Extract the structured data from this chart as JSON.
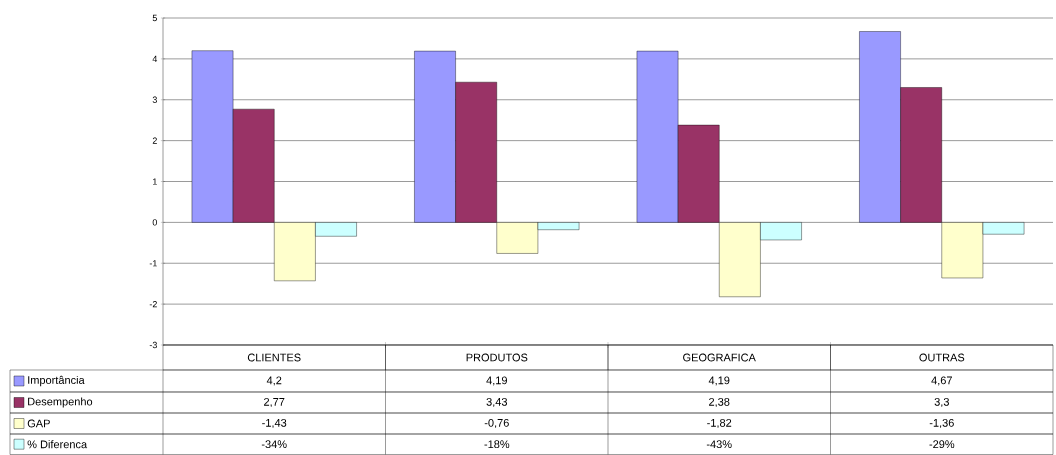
{
  "chart_data": {
    "type": "bar",
    "categories": [
      "CLIENTES",
      "PRODUTOS",
      "GEOGRAFICA",
      "OUTRAS"
    ],
    "series": [
      {
        "name": "Importância",
        "color": "#9999ff",
        "values": [
          4.2,
          4.19,
          4.19,
          4.67
        ],
        "value_labels": [
          "4,2",
          "4,19",
          "4,19",
          "4,67"
        ]
      },
      {
        "name": "Desempenho",
        "color": "#993366",
        "values": [
          2.77,
          3.43,
          2.38,
          3.3
        ],
        "value_labels": [
          "2,77",
          "3,43",
          "2,38",
          "3,3"
        ]
      },
      {
        "name": "GAP",
        "color": "#ffffcc",
        "values": [
          -1.43,
          -0.76,
          -1.82,
          -1.36
        ],
        "value_labels": [
          "-1,43",
          "-0,76",
          "-1,82",
          "-1,36"
        ]
      },
      {
        "name": "% Diferenca",
        "color": "#ccffff",
        "values": [
          -0.34,
          -0.18,
          -0.43,
          -0.29
        ],
        "value_labels": [
          "-34%",
          "-18%",
          "-43%",
          "-29%"
        ]
      }
    ],
    "ylim": [
      -3,
      5
    ],
    "yticks": [
      -3,
      -2,
      -1,
      0,
      1,
      2,
      3,
      4,
      5
    ],
    "grid": "y",
    "legend": "bottom left"
  }
}
